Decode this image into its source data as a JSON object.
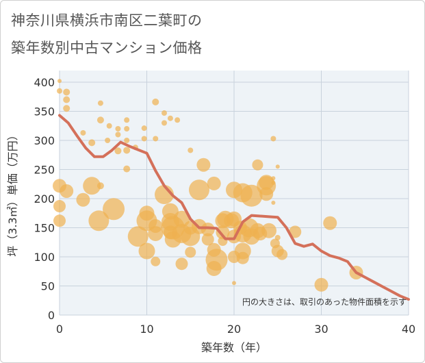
{
  "title_line1": "神奈川県横浜市南区二葉町の",
  "title_line2": "築年数別中古マンション価格",
  "chart_data": {
    "type": "scatter",
    "xlabel": "築年数（年）",
    "ylabel": "坪（3.3㎡）単価（万円）",
    "xlim": [
      0,
      40
    ],
    "ylim": [
      0,
      420
    ],
    "xticks": [
      0,
      10,
      20,
      30,
      40
    ],
    "yticks": [
      0,
      50,
      100,
      150,
      200,
      250,
      300,
      350,
      400
    ],
    "grid": true,
    "annotation": "円の大きさは、取引のあった物件面積を示す",
    "colors": {
      "bubble": "#f0b050",
      "line": "#d4705a"
    },
    "points": [
      {
        "x": 0,
        "y": 402,
        "s": 3
      },
      {
        "x": 0,
        "y": 385,
        "s": 4
      },
      {
        "x": 0.8,
        "y": 383,
        "s": 5
      },
      {
        "x": 0.8,
        "y": 370,
        "s": 5
      },
      {
        "x": 0.8,
        "y": 355,
        "s": 5
      },
      {
        "x": 0,
        "y": 222,
        "s": 10
      },
      {
        "x": 0,
        "y": 187,
        "s": 9
      },
      {
        "x": 0,
        "y": 162,
        "s": 9
      },
      {
        "x": 0.8,
        "y": 213,
        "s": 10
      },
      {
        "x": 2.7,
        "y": 313,
        "s": 4
      },
      {
        "x": 3.7,
        "y": 296,
        "s": 5
      },
      {
        "x": 2.7,
        "y": 198,
        "s": 10
      },
      {
        "x": 3.7,
        "y": 222,
        "s": 13
      },
      {
        "x": 4.5,
        "y": 162,
        "s": 15
      },
      {
        "x": 4.7,
        "y": 222,
        "s": 5
      },
      {
        "x": 4.7,
        "y": 335,
        "s": 5
      },
      {
        "x": 4.7,
        "y": 364,
        "s": 4
      },
      {
        "x": 5.7,
        "y": 325,
        "s": 4
      },
      {
        "x": 5.5,
        "y": 300,
        "s": 4
      },
      {
        "x": 6.2,
        "y": 182,
        "s": 16
      },
      {
        "x": 6.7,
        "y": 320,
        "s": 4
      },
      {
        "x": 6.7,
        "y": 310,
        "s": 4
      },
      {
        "x": 6.7,
        "y": 282,
        "s": 5
      },
      {
        "x": 7.7,
        "y": 335,
        "s": 4
      },
      {
        "x": 7.7,
        "y": 320,
        "s": 4
      },
      {
        "x": 7.7,
        "y": 300,
        "s": 4
      },
      {
        "x": 7.7,
        "y": 283,
        "s": 5
      },
      {
        "x": 7.7,
        "y": 251,
        "s": 5
      },
      {
        "x": 9.7,
        "y": 321,
        "s": 4
      },
      {
        "x": 9.7,
        "y": 303,
        "s": 4
      },
      {
        "x": 8.7,
        "y": 288,
        "s": 4
      },
      {
        "x": 9,
        "y": 135,
        "s": 15
      },
      {
        "x": 10,
        "y": 175,
        "s": 11
      },
      {
        "x": 10,
        "y": 162,
        "s": 15
      },
      {
        "x": 10,
        "y": 110,
        "s": 12
      },
      {
        "x": 11,
        "y": 366,
        "s": 5
      },
      {
        "x": 11,
        "y": 303,
        "s": 4
      },
      {
        "x": 11,
        "y": 140,
        "s": 11
      },
      {
        "x": 11,
        "y": 92,
        "s": 7
      },
      {
        "x": 11,
        "y": 153,
        "s": 10
      },
      {
        "x": 12,
        "y": 347,
        "s": 4
      },
      {
        "x": 12,
        "y": 330,
        "s": 4
      },
      {
        "x": 12.7,
        "y": 338,
        "s": 4
      },
      {
        "x": 12,
        "y": 207,
        "s": 14
      },
      {
        "x": 12.7,
        "y": 178,
        "s": 12
      },
      {
        "x": 12.7,
        "y": 160,
        "s": 13
      },
      {
        "x": 12.7,
        "y": 142,
        "s": 10
      },
      {
        "x": 13,
        "y": 150,
        "s": 17
      },
      {
        "x": 13,
        "y": 130,
        "s": 12
      },
      {
        "x": 13.5,
        "y": 335,
        "s": 4
      },
      {
        "x": 14,
        "y": 165,
        "s": 12
      },
      {
        "x": 14,
        "y": 140,
        "s": 14
      },
      {
        "x": 14,
        "y": 88,
        "s": 9
      },
      {
        "x": 15,
        "y": 283,
        "s": 4
      },
      {
        "x": 15,
        "y": 135,
        "s": 14
      },
      {
        "x": 15,
        "y": 150,
        "s": 10
      },
      {
        "x": 15,
        "y": 108,
        "s": 8
      },
      {
        "x": 16,
        "y": 215,
        "s": 15
      },
      {
        "x": 16,
        "y": 152,
        "s": 11
      },
      {
        "x": 16.5,
        "y": 258,
        "s": 10
      },
      {
        "x": 17,
        "y": 147,
        "s": 10
      },
      {
        "x": 17,
        "y": 130,
        "s": 9
      },
      {
        "x": 17.7,
        "y": 226,
        "s": 10
      },
      {
        "x": 17.7,
        "y": 112,
        "s": 10
      },
      {
        "x": 17.7,
        "y": 80,
        "s": 11
      },
      {
        "x": 18,
        "y": 95,
        "s": 16
      },
      {
        "x": 18.7,
        "y": 162,
        "s": 11
      },
      {
        "x": 18.7,
        "y": 142,
        "s": 10
      },
      {
        "x": 18.7,
        "y": 127,
        "s": 7
      },
      {
        "x": 19,
        "y": 165,
        "s": 12
      },
      {
        "x": 19.7,
        "y": 162,
        "s": 11
      },
      {
        "x": 20,
        "y": 215,
        "s": 12
      },
      {
        "x": 20,
        "y": 165,
        "s": 11
      },
      {
        "x": 20,
        "y": 135,
        "s": 10
      },
      {
        "x": 20,
        "y": 100,
        "s": 9
      },
      {
        "x": 20,
        "y": 55,
        "s": 3
      },
      {
        "x": 20.7,
        "y": 150,
        "s": 10
      },
      {
        "x": 21,
        "y": 210,
        "s": 14
      },
      {
        "x": 21,
        "y": 140,
        "s": 13
      },
      {
        "x": 21,
        "y": 110,
        "s": 12
      },
      {
        "x": 21,
        "y": 98,
        "s": 9
      },
      {
        "x": 21.7,
        "y": 150,
        "s": 14
      },
      {
        "x": 22,
        "y": 205,
        "s": 16
      },
      {
        "x": 22,
        "y": 135,
        "s": 12
      },
      {
        "x": 22.7,
        "y": 258,
        "s": 8
      },
      {
        "x": 22.7,
        "y": 145,
        "s": 11
      },
      {
        "x": 23,
        "y": 140,
        "s": 10
      },
      {
        "x": 23.7,
        "y": 228,
        "s": 11
      },
      {
        "x": 23.7,
        "y": 222,
        "s": 14
      },
      {
        "x": 23.7,
        "y": 208,
        "s": 10
      },
      {
        "x": 24,
        "y": 145,
        "s": 11
      },
      {
        "x": 24.5,
        "y": 303,
        "s": 4
      },
      {
        "x": 24.5,
        "y": 235,
        "s": 3
      },
      {
        "x": 24.5,
        "y": 227,
        "s": 3
      },
      {
        "x": 24.5,
        "y": 193,
        "s": 3
      },
      {
        "x": 24.7,
        "y": 123,
        "s": 7
      },
      {
        "x": 25,
        "y": 255,
        "s": 3
      },
      {
        "x": 25,
        "y": 133,
        "s": 4
      },
      {
        "x": 25,
        "y": 110,
        "s": 9
      },
      {
        "x": 25.5,
        "y": 104,
        "s": 8
      },
      {
        "x": 27,
        "y": 143,
        "s": 9
      },
      {
        "x": 30,
        "y": 52,
        "s": 10
      },
      {
        "x": 31,
        "y": 158,
        "s": 10
      },
      {
        "x": 34,
        "y": 73,
        "s": 10
      }
    ],
    "line": {
      "x": [
        0,
        1,
        2,
        3,
        4,
        5,
        6,
        7,
        8,
        9,
        10,
        11,
        12,
        13,
        14,
        15,
        16,
        17,
        18,
        19,
        20,
        21,
        22,
        23,
        24,
        25,
        26,
        27,
        28,
        29,
        30,
        31,
        32,
        33,
        34,
        35,
        36,
        37,
        38,
        39,
        40
      ],
      "y": [
        343,
        330,
        308,
        287,
        272,
        272,
        283,
        297,
        290,
        284,
        278,
        248,
        222,
        205,
        193,
        165,
        150,
        150,
        149,
        131,
        131,
        160,
        171,
        170,
        169,
        168,
        150,
        123,
        118,
        122,
        110,
        102,
        98,
        92,
        73,
        65,
        57,
        49,
        41,
        33,
        27
      ]
    }
  }
}
